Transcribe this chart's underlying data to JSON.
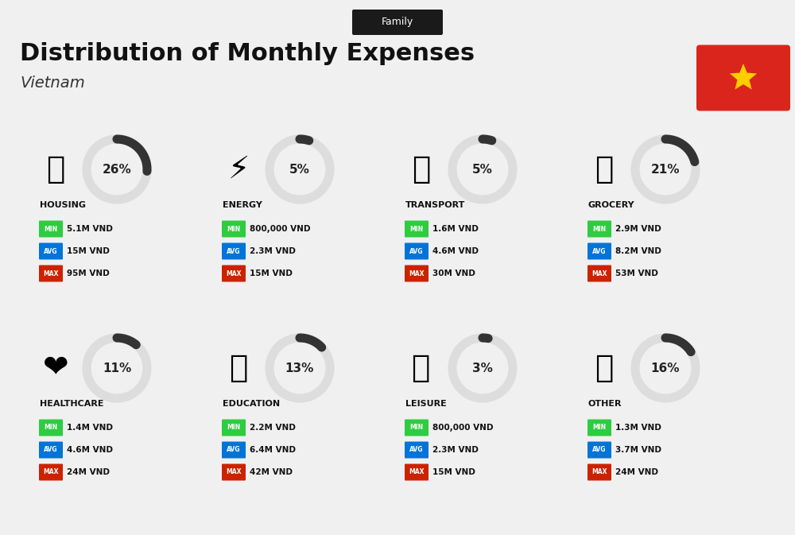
{
  "title": "Distribution of Monthly Expenses",
  "subtitle": "Vietnam",
  "tag": "Family",
  "background_color": "#f0f0f0",
  "categories": [
    {
      "name": "HOUSING",
      "pct": 26,
      "min": "5.1M VND",
      "avg": "15M VND",
      "max": "95M VND",
      "row": 0,
      "col": 0
    },
    {
      "name": "ENERGY",
      "pct": 5,
      "min": "800,000 VND",
      "avg": "2.3M VND",
      "max": "15M VND",
      "row": 0,
      "col": 1
    },
    {
      "name": "TRANSPORT",
      "pct": 5,
      "min": "1.6M VND",
      "avg": "4.6M VND",
      "max": "30M VND",
      "row": 0,
      "col": 2
    },
    {
      "name": "GROCERY",
      "pct": 21,
      "min": "2.9M VND",
      "avg": "8.2M VND",
      "max": "53M VND",
      "row": 0,
      "col": 3
    },
    {
      "name": "HEALTHCARE",
      "pct": 11,
      "min": "1.4M VND",
      "avg": "4.6M VND",
      "max": "24M VND",
      "row": 1,
      "col": 0
    },
    {
      "name": "EDUCATION",
      "pct": 13,
      "min": "2.2M VND",
      "avg": "6.4M VND",
      "max": "42M VND",
      "row": 1,
      "col": 1
    },
    {
      "name": "LEISURE",
      "pct": 3,
      "min": "800,000 VND",
      "avg": "2.3M VND",
      "max": "15M VND",
      "row": 1,
      "col": 2
    },
    {
      "name": "OTHER",
      "pct": 16,
      "min": "1.3M VND",
      "avg": "3.7M VND",
      "max": "24M VND",
      "row": 1,
      "col": 3
    }
  ],
  "min_color": "#2ecc40",
  "avg_color": "#0074d9",
  "max_color": "#cc2200",
  "arc_color": "#333333",
  "arc_bg_color": "#dddddd",
  "label_color": "#111111",
  "tag_bg": "#1a1a1a",
  "tag_fg": "#ffffff",
  "flag_bg": "#da251d",
  "flag_star": "#ffcd00"
}
